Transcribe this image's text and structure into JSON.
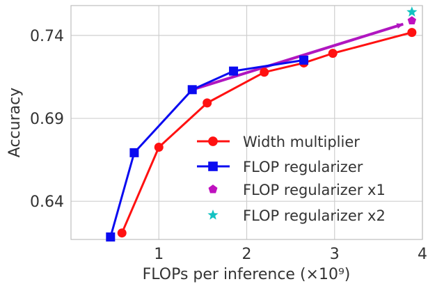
{
  "chart_data": {
    "type": "line",
    "xlabel": "FLOPs per inference (×10⁹)",
    "ylabel": "Accuracy",
    "xlim": [
      0,
      4
    ],
    "ylim": [
      0.617,
      0.758
    ],
    "grid": true,
    "legend_position": "bottom-right",
    "x_ticks": [
      {
        "value": 1,
        "label": "1"
      },
      {
        "value": 2,
        "label": "2"
      },
      {
        "value": 3,
        "label": "3"
      },
      {
        "value": 4,
        "label": "4"
      }
    ],
    "y_ticks": [
      {
        "value": 0.64,
        "label": "0.64"
      },
      {
        "value": 0.69,
        "label": "0.69"
      },
      {
        "value": 0.74,
        "label": "0.74"
      }
    ],
    "series": [
      {
        "name": "Width multiplier",
        "color": "#ff1111",
        "marker": "circle",
        "points": [
          [
            0.58,
            0.6209
          ],
          [
            1.0,
            0.6726
          ],
          [
            1.55,
            0.6993
          ],
          [
            2.2,
            0.7178
          ],
          [
            2.65,
            0.7234
          ],
          [
            2.98,
            0.7292
          ],
          [
            3.88,
            0.7418
          ]
        ]
      },
      {
        "name": "FLOP regularizer",
        "color": "#0b0bf0",
        "marker": "square",
        "points": [
          [
            0.45,
            0.6185
          ],
          [
            0.72,
            0.6693
          ],
          [
            1.38,
            0.7073
          ],
          [
            1.85,
            0.7185
          ],
          [
            2.65,
            0.7251
          ]
        ]
      },
      {
        "name": "FLOP regularizer x1",
        "color": "#bf11bf",
        "marker": "pentagon",
        "points": [
          [
            3.88,
            0.7489
          ]
        ]
      },
      {
        "name": "FLOP regularizer x2",
        "color": "#12c2c2",
        "marker": "star",
        "points": [
          [
            3.88,
            0.7541
          ]
        ]
      }
    ],
    "annotations": [
      {
        "type": "arrow",
        "color": "#b016c0",
        "from": [
          1.38,
          0.7073
        ],
        "to": [
          3.78,
          0.7468
        ]
      }
    ]
  }
}
